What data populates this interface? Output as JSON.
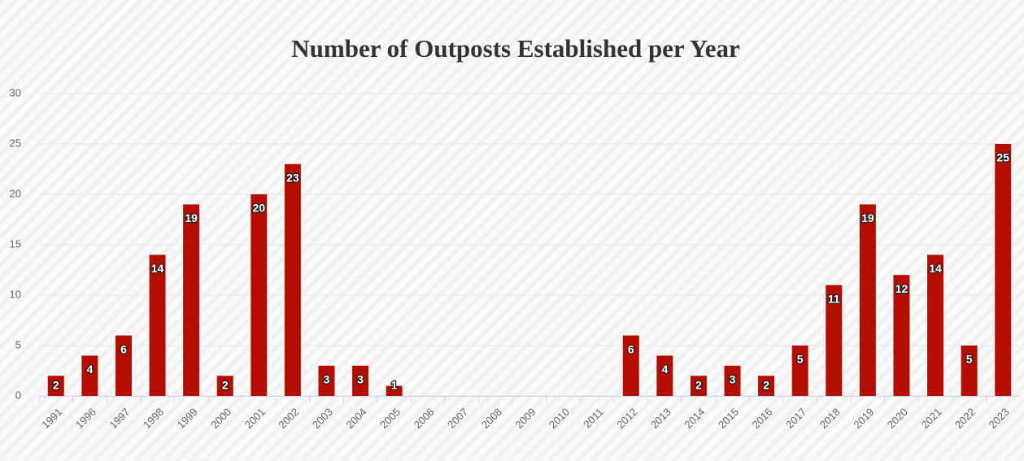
{
  "chart_data": {
    "type": "bar",
    "title": "Number of Outposts Established per Year",
    "categories": [
      "1991",
      "1996",
      "1997",
      "1998",
      "1999",
      "2000",
      "2001",
      "2002",
      "2003",
      "2004",
      "2005",
      "2006",
      "2007",
      "2008",
      "2009",
      "2010",
      "2011",
      "2012",
      "2013",
      "2014",
      "2015",
      "2016",
      "2017",
      "2018",
      "2019",
      "2020",
      "2021",
      "2022",
      "2023"
    ],
    "values": [
      2,
      4,
      6,
      14,
      19,
      2,
      20,
      23,
      3,
      3,
      1,
      0,
      0,
      0,
      0,
      0,
      0,
      6,
      4,
      2,
      3,
      2,
      5,
      11,
      19,
      12,
      14,
      5,
      25
    ],
    "color": "#b30e00",
    "ylim": [
      0,
      30
    ],
    "yticks": [
      0,
      5,
      10,
      15,
      20,
      25,
      30
    ],
    "grid": true
  }
}
